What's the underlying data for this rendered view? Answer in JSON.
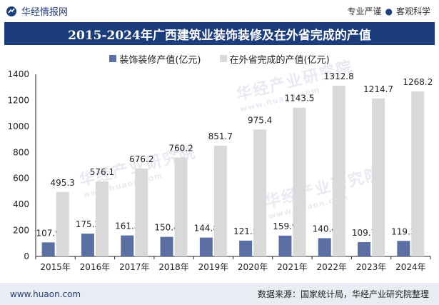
{
  "header": {
    "brand_name": "华经情报网",
    "slogan_left": "专业严谨",
    "slogan_right": "客观科学"
  },
  "watermark": {
    "text": "华经产业研究院",
    "url": "www.huaon.com"
  },
  "footer": {
    "url": "www.huaon.com",
    "source": "数据来源：国家统计局，华经产业研究院整理"
  },
  "colors": {
    "brand_blue": "#1c3d7c",
    "series_decoration": "#5b6fa3",
    "series_other": "#d9d9d9"
  },
  "chart_data": {
    "type": "bar",
    "title": "2015-2024年广西建筑业装饰装修及在外省完成的产值",
    "xlabel": "",
    "ylabel": "",
    "categories": [
      "2015年",
      "2016年",
      "2017年",
      "2018年",
      "2019年",
      "2020年",
      "2021年",
      "2022年",
      "2023年",
      "2024年"
    ],
    "series": [
      {
        "name": "装饰装修产值(亿元)",
        "color": "#5b6fa3",
        "values": [
          107.9,
          175.2,
          161.3,
          150.4,
          144.8,
          121.5,
          159.9,
          140.4,
          109.7,
          119.3
        ],
        "labels": [
          "107.9",
          "175.2",
          "161.3",
          "150.4",
          "144.8",
          "121.5",
          "159.9",
          "140.4",
          "109.7",
          "119.3"
        ]
      },
      {
        "name": "在外省完成的产值(亿元)",
        "color": "#d9d9d9",
        "values": [
          495.3,
          576.1,
          676.2,
          760.2,
          851.7,
          975.4,
          1143.5,
          1312.8,
          1214.7,
          1268.2
        ],
        "labels": [
          "495.3",
          "576.1",
          "676.2",
          "760.2",
          "851.7",
          "975.4",
          "1143.5",
          "1312.8",
          "1214.7",
          "1268.2"
        ]
      }
    ],
    "ylim": [
      0,
      1400
    ],
    "yticks": [
      "0",
      "200",
      "400",
      "600",
      "800",
      "1000",
      "1200",
      "1400"
    ],
    "grid": false,
    "legend_position": "top-center"
  }
}
